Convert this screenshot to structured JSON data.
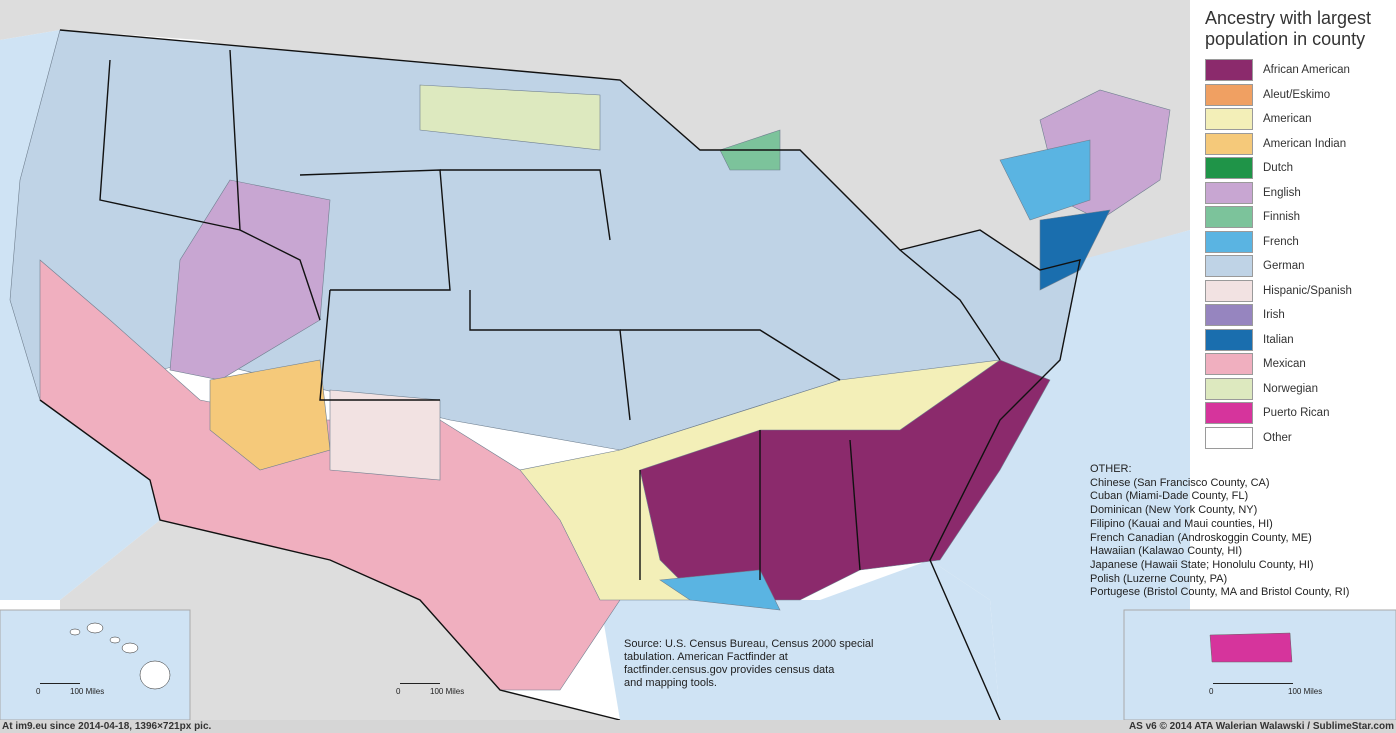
{
  "legend": {
    "title": "Ancestry with largest population in county",
    "items": [
      {
        "label": "African American",
        "color": "#8b2a6c"
      },
      {
        "label": "Aleut/Eskimo",
        "color": "#f0a062"
      },
      {
        "label": "American",
        "color": "#f3efb8"
      },
      {
        "label": "American Indian",
        "color": "#f5c97a"
      },
      {
        "label": "Dutch",
        "color": "#1f9448"
      },
      {
        "label": "English",
        "color": "#c8a6d2"
      },
      {
        "label": "Finnish",
        "color": "#7cc39b"
      },
      {
        "label": "French",
        "color": "#5ab4e2"
      },
      {
        "label": "German",
        "color": "#bfd3e6"
      },
      {
        "label": "Hispanic/Spanish",
        "color": "#f2e2e2"
      },
      {
        "label": "Irish",
        "color": "#9685bf"
      },
      {
        "label": "Italian",
        "color": "#1a6eae"
      },
      {
        "label": "Mexican",
        "color": "#f0afbf"
      },
      {
        "label": "Norwegian",
        "color": "#dde9bf"
      },
      {
        "label": "Puerto Rican",
        "color": "#d6349c"
      },
      {
        "label": "Other",
        "color": "#ffffff"
      }
    ]
  },
  "other": {
    "heading": "OTHER:",
    "lines": [
      "Chinese (San Francisco County, CA)",
      "Cuban (Miami-Dade County, FL)",
      "Dominican (New York County, NY)",
      "Filipino (Kauai and Maui counties, HI)",
      "French Canadian (Androskoggin County, ME)",
      "Hawaiian (Kalawao County, HI)",
      "Japanese (Hawaii State; Honolulu County, HI)",
      "Polish (Luzerne County, PA)",
      "Portugese (Bristol County, MA and Bristol County, RI)"
    ]
  },
  "source": {
    "lines": [
      "Source: U.S. Census Bureau, Census 2000 special",
      "tabulation. American Factfinder at",
      "factfinder.census.gov provides census data",
      "and mapping tools."
    ]
  },
  "scales": {
    "hawaii": {
      "zero": "0",
      "miles": "100 Miles"
    },
    "conus": {
      "zero": "0",
      "miles": "100 Miles"
    },
    "puerto_rico": {
      "zero": "0",
      "miles": "100 Miles"
    }
  },
  "footer": {
    "left": "At im9.eu  since 2014-04-18, 1396×721px pic.",
    "right": "AS v6 © 2014 ATA Walerian Walawski / SublimeStar.com"
  },
  "colors": {
    "ocean": "#cfe3f4",
    "canada_mexico_land": "#dcdcdc",
    "state_border": "#111111",
    "county_border": "#6f7f8f"
  }
}
